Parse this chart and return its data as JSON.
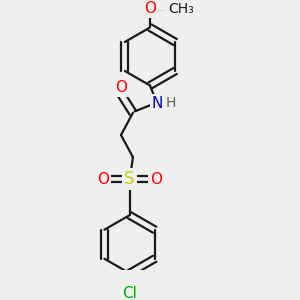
{
  "background_color": "#efefef",
  "bond_color": "#1a1a1a",
  "atom_colors": {
    "O": "#ff0000",
    "N": "#0000cc",
    "S": "#cccc00",
    "Cl": "#00aa00",
    "H": "#606060",
    "C": "#1a1a1a"
  },
  "bond_width": 1.6,
  "figsize": [
    3.0,
    3.0
  ],
  "dpi": 100,
  "xlim": [
    -2.0,
    2.0
  ],
  "ylim": [
    -3.8,
    3.8
  ]
}
